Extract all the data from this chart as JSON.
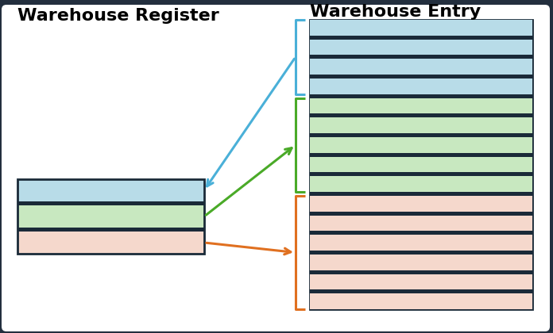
{
  "background_color": "#ffffff",
  "outer_bg": "#232f3e",
  "title_register": "Warehouse Register",
  "title_entry": "Warehouse Entry",
  "title_fontsize": 16,
  "color_blue": "#b8dce8",
  "color_green": "#c8e8c0",
  "color_salmon": "#f5d8cc",
  "color_dark": "#1a2a38",
  "color_arrow_blue": "#4ab0d8",
  "color_arrow_green": "#4aaa28",
  "color_arrow_orange": "#e07020",
  "lw_border": 2.0,
  "lw_arrow": 2.2
}
